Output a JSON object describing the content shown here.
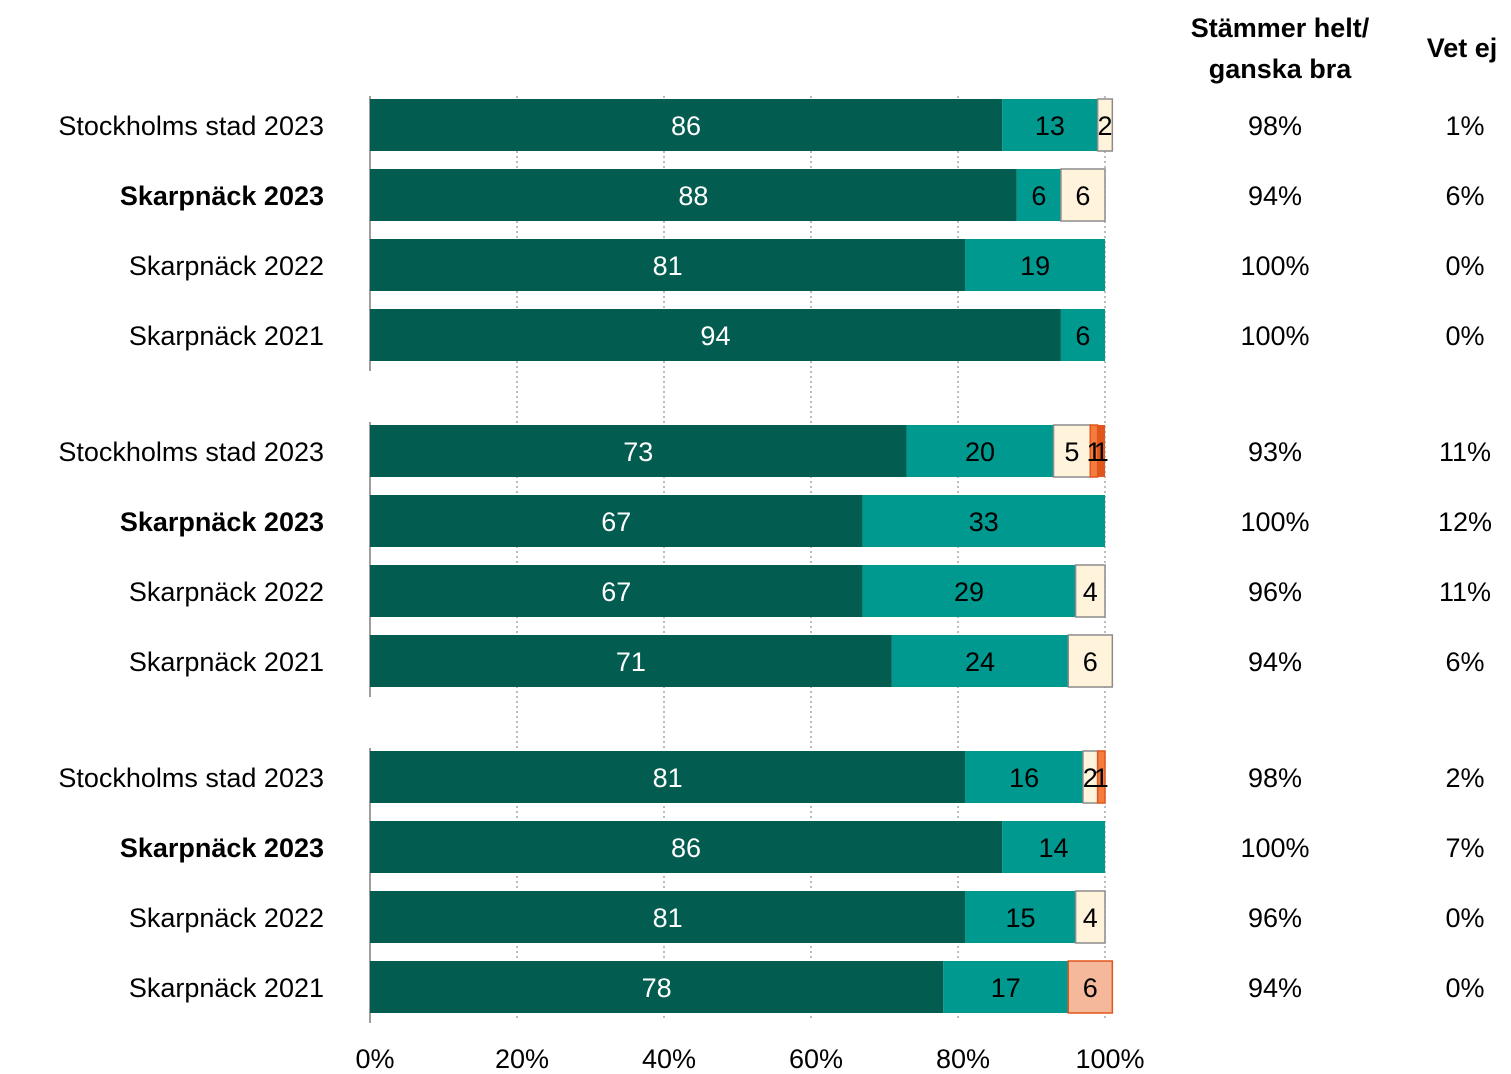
{
  "chart_data": {
    "type": "bar",
    "orientation": "horizontal",
    "stacked": true,
    "xlim": [
      0,
      100
    ],
    "x_ticks": [
      "0%",
      "20%",
      "40%",
      "60%",
      "80%",
      "100%"
    ],
    "grid": "vertical dotted",
    "column_headers": {
      "agree_line1": "Stämmer helt/",
      "agree_line2": "ganska bra",
      "dontknow": "Vet ej"
    },
    "colors": [
      "#035c50",
      "#00998f",
      "#fff3dc",
      "#f47c3c",
      "#e0561c"
    ],
    "groups": [
      {
        "rows": [
          {
            "label": "Stockholms stad 2023",
            "bold": false,
            "values": [
              86,
              13,
              2,
              0,
              0
            ],
            "agree": "98%",
            "dontknow": "1%"
          },
          {
            "label": "Skarpnäck 2023",
            "bold": true,
            "values": [
              88,
              6,
              6,
              0,
              0
            ],
            "agree": "94%",
            "dontknow": "6%"
          },
          {
            "label": "Skarpnäck 2022",
            "bold": false,
            "values": [
              81,
              19,
              0,
              0,
              0
            ],
            "agree": "100%",
            "dontknow": "0%"
          },
          {
            "label": "Skarpnäck 2021",
            "bold": false,
            "values": [
              94,
              6,
              0,
              0,
              0
            ],
            "agree": "100%",
            "dontknow": "0%"
          }
        ]
      },
      {
        "rows": [
          {
            "label": "Stockholms stad 2023",
            "bold": false,
            "values": [
              73,
              20,
              5,
              1,
              1
            ],
            "agree": "93%",
            "dontknow": "11%"
          },
          {
            "label": "Skarpnäck 2023",
            "bold": true,
            "values": [
              67,
              33,
              0,
              0,
              0
            ],
            "agree": "100%",
            "dontknow": "12%"
          },
          {
            "label": "Skarpnäck 2022",
            "bold": false,
            "values": [
              67,
              29,
              4,
              0,
              0
            ],
            "agree": "96%",
            "dontknow": "11%"
          },
          {
            "label": "Skarpnäck 2021",
            "bold": false,
            "values": [
              71,
              24,
              6,
              0,
              0
            ],
            "agree": "94%",
            "dontknow": "6%"
          }
        ]
      },
      {
        "rows": [
          {
            "label": "Stockholms stad 2023",
            "bold": false,
            "values": [
              81,
              16,
              2,
              1,
              0
            ],
            "agree": "98%",
            "dontknow": "2%"
          },
          {
            "label": "Skarpnäck 2023",
            "bold": true,
            "values": [
              86,
              14,
              0,
              0,
              0
            ],
            "agree": "100%",
            "dontknow": "7%"
          },
          {
            "label": "Skarpnäck 2022",
            "bold": false,
            "values": [
              81,
              15,
              4,
              0,
              0
            ],
            "agree": "96%",
            "dontknow": "0%"
          },
          {
            "label": "Skarpnäck 2021",
            "bold": false,
            "values": [
              78,
              17,
              0,
              6,
              0
            ],
            "agree": "94%",
            "dontknow": "0%"
          }
        ]
      }
    ]
  }
}
